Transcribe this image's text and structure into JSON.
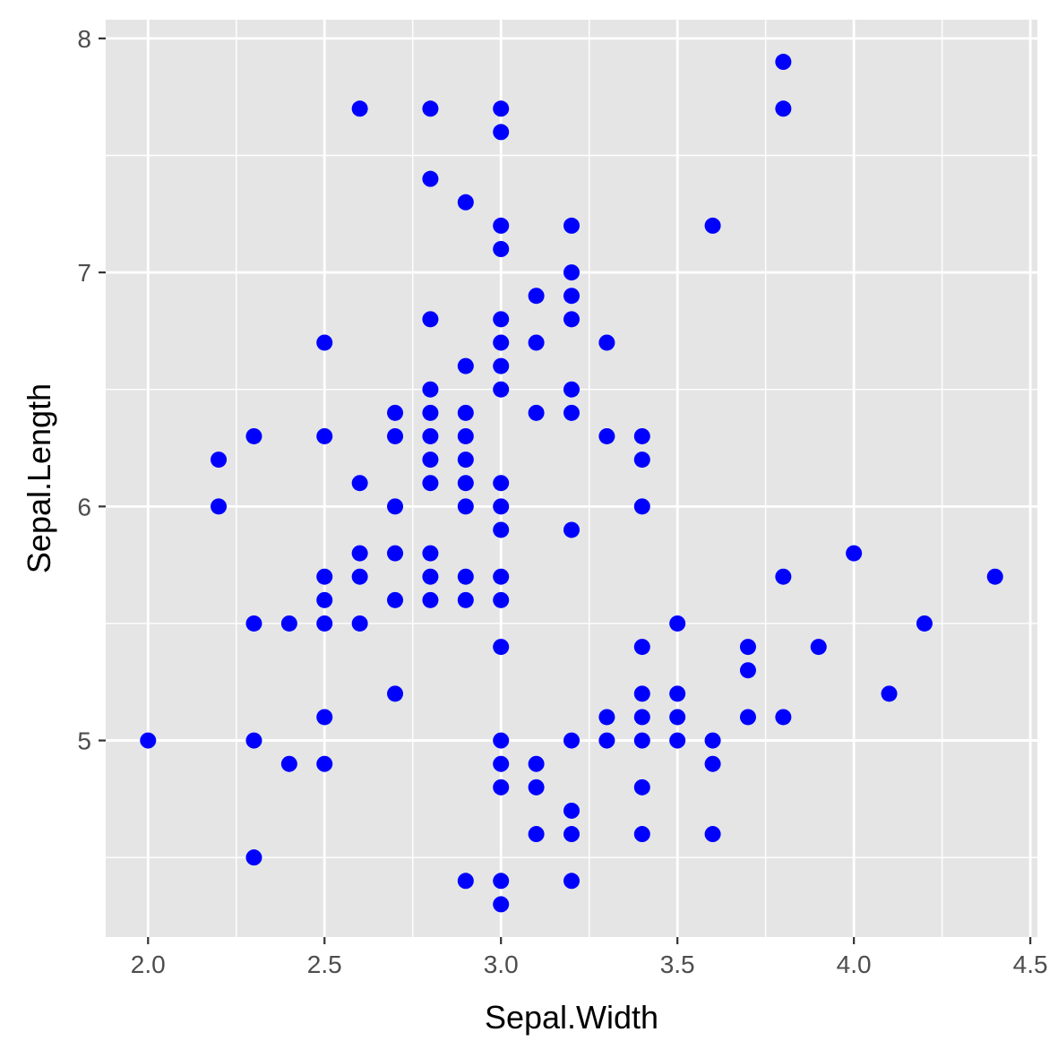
{
  "chart_data": {
    "type": "scatter",
    "title": "",
    "xlabel": "Sepal.Width",
    "ylabel": "Sepal.Length",
    "xlim": [
      1.88,
      4.52
    ],
    "ylim": [
      4.16,
      8.08
    ],
    "x_ticks": [
      2.0,
      2.5,
      3.0,
      3.5,
      4.0,
      4.5
    ],
    "x_tick_labels": [
      "2.0",
      "2.5",
      "3.0",
      "3.5",
      "4.0",
      "4.5"
    ],
    "y_ticks": [
      5,
      6,
      7,
      8
    ],
    "y_tick_labels": [
      "5",
      "6",
      "7",
      "8"
    ],
    "grid": true,
    "legend": "none",
    "point_color": "#0000ff",
    "panel_background": "#e5e5e5",
    "grid_color": "#ffffff",
    "points": [
      [
        2.0,
        5.0
      ],
      [
        2.2,
        6.0
      ],
      [
        2.2,
        6.2
      ],
      [
        2.3,
        4.5
      ],
      [
        2.3,
        5.0
      ],
      [
        2.3,
        5.5
      ],
      [
        2.3,
        6.3
      ],
      [
        2.4,
        4.9
      ],
      [
        2.4,
        5.5
      ],
      [
        2.5,
        4.9
      ],
      [
        2.5,
        5.1
      ],
      [
        2.5,
        5.5
      ],
      [
        2.5,
        5.6
      ],
      [
        2.5,
        5.7
      ],
      [
        2.5,
        6.3
      ],
      [
        2.5,
        6.7
      ],
      [
        2.6,
        5.5
      ],
      [
        2.6,
        5.7
      ],
      [
        2.6,
        5.8
      ],
      [
        2.6,
        6.1
      ],
      [
        2.6,
        7.7
      ],
      [
        2.7,
        5.2
      ],
      [
        2.7,
        5.6
      ],
      [
        2.7,
        5.8
      ],
      [
        2.7,
        6.0
      ],
      [
        2.7,
        6.3
      ],
      [
        2.7,
        6.4
      ],
      [
        2.8,
        5.6
      ],
      [
        2.8,
        5.7
      ],
      [
        2.8,
        5.8
      ],
      [
        2.8,
        6.1
      ],
      [
        2.8,
        6.2
      ],
      [
        2.8,
        6.3
      ],
      [
        2.8,
        6.4
      ],
      [
        2.8,
        6.5
      ],
      [
        2.8,
        6.8
      ],
      [
        2.8,
        7.4
      ],
      [
        2.8,
        7.7
      ],
      [
        2.9,
        4.4
      ],
      [
        2.9,
        5.6
      ],
      [
        2.9,
        5.7
      ],
      [
        2.9,
        6.0
      ],
      [
        2.9,
        6.1
      ],
      [
        2.9,
        6.2
      ],
      [
        2.9,
        6.3
      ],
      [
        2.9,
        6.4
      ],
      [
        2.9,
        6.6
      ],
      [
        2.9,
        7.3
      ],
      [
        3.0,
        4.3
      ],
      [
        3.0,
        4.4
      ],
      [
        3.0,
        4.8
      ],
      [
        3.0,
        4.9
      ],
      [
        3.0,
        5.0
      ],
      [
        3.0,
        5.4
      ],
      [
        3.0,
        5.6
      ],
      [
        3.0,
        5.7
      ],
      [
        3.0,
        5.9
      ],
      [
        3.0,
        6.0
      ],
      [
        3.0,
        6.1
      ],
      [
        3.0,
        6.5
      ],
      [
        3.0,
        6.6
      ],
      [
        3.0,
        6.7
      ],
      [
        3.0,
        6.8
      ],
      [
        3.0,
        7.1
      ],
      [
        3.0,
        7.2
      ],
      [
        3.0,
        7.6
      ],
      [
        3.0,
        7.7
      ],
      [
        3.1,
        4.6
      ],
      [
        3.1,
        4.8
      ],
      [
        3.1,
        4.9
      ],
      [
        3.1,
        6.4
      ],
      [
        3.1,
        6.7
      ],
      [
        3.1,
        6.9
      ],
      [
        3.2,
        4.4
      ],
      [
        3.2,
        4.6
      ],
      [
        3.2,
        4.7
      ],
      [
        3.2,
        5.0
      ],
      [
        3.2,
        5.9
      ],
      [
        3.2,
        6.4
      ],
      [
        3.2,
        6.5
      ],
      [
        3.2,
        6.8
      ],
      [
        3.2,
        6.9
      ],
      [
        3.2,
        7.0
      ],
      [
        3.2,
        7.2
      ],
      [
        3.3,
        5.0
      ],
      [
        3.3,
        5.1
      ],
      [
        3.3,
        6.3
      ],
      [
        3.3,
        6.7
      ],
      [
        3.4,
        4.6
      ],
      [
        3.4,
        4.8
      ],
      [
        3.4,
        5.0
      ],
      [
        3.4,
        5.1
      ],
      [
        3.4,
        5.2
      ],
      [
        3.4,
        5.4
      ],
      [
        3.4,
        6.0
      ],
      [
        3.4,
        6.2
      ],
      [
        3.4,
        6.3
      ],
      [
        3.5,
        5.0
      ],
      [
        3.5,
        5.1
      ],
      [
        3.5,
        5.2
      ],
      [
        3.5,
        5.5
      ],
      [
        3.6,
        4.6
      ],
      [
        3.6,
        4.9
      ],
      [
        3.6,
        5.0
      ],
      [
        3.6,
        7.2
      ],
      [
        3.7,
        5.1
      ],
      [
        3.7,
        5.3
      ],
      [
        3.7,
        5.4
      ],
      [
        3.8,
        5.1
      ],
      [
        3.8,
        5.7
      ],
      [
        3.8,
        7.7
      ],
      [
        3.8,
        7.9
      ],
      [
        3.9,
        5.4
      ],
      [
        4.0,
        5.8
      ],
      [
        4.1,
        5.2
      ],
      [
        4.2,
        5.5
      ],
      [
        4.4,
        5.7
      ]
    ]
  }
}
